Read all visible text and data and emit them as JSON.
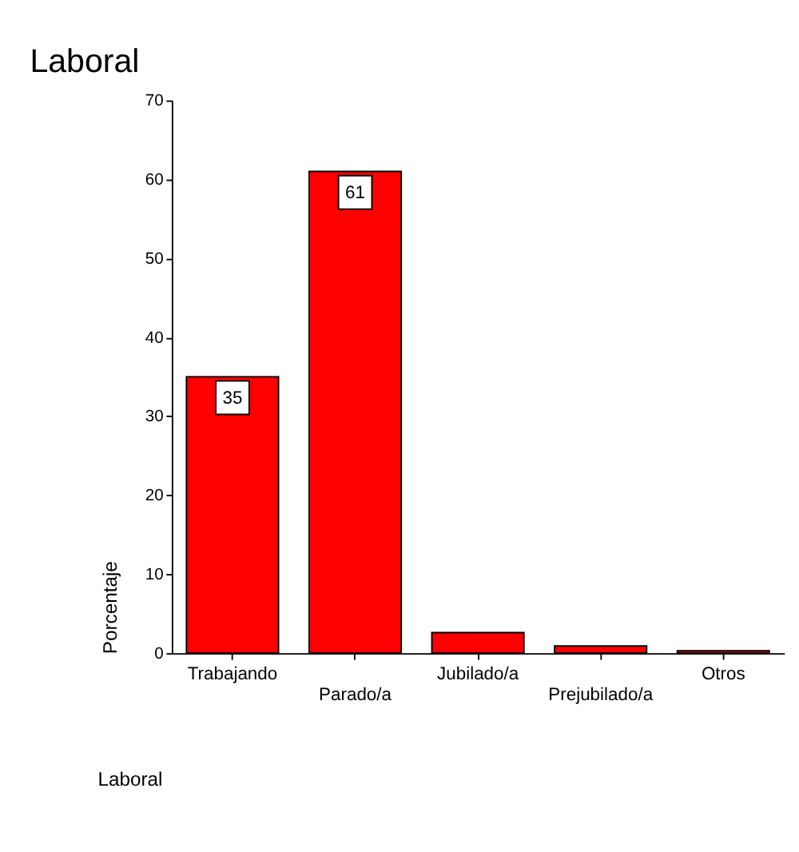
{
  "chart_data": {
    "type": "bar",
    "title": "Laboral",
    "xlabel": "Laboral",
    "ylabel": "Porcentaje",
    "categories": [
      "Trabajando",
      "Parado/a",
      "Jubilado/a",
      "Prejubilado/a",
      "Otros"
    ],
    "values": [
      35,
      61,
      2.6,
      0.9,
      0.3
    ],
    "value_labels": [
      "35",
      "61",
      null,
      null,
      null
    ],
    "color": "#ff0000",
    "ylim": [
      0,
      70
    ],
    "yticks": [
      0,
      10,
      20,
      30,
      40,
      50,
      60,
      70
    ],
    "grid": false
  }
}
